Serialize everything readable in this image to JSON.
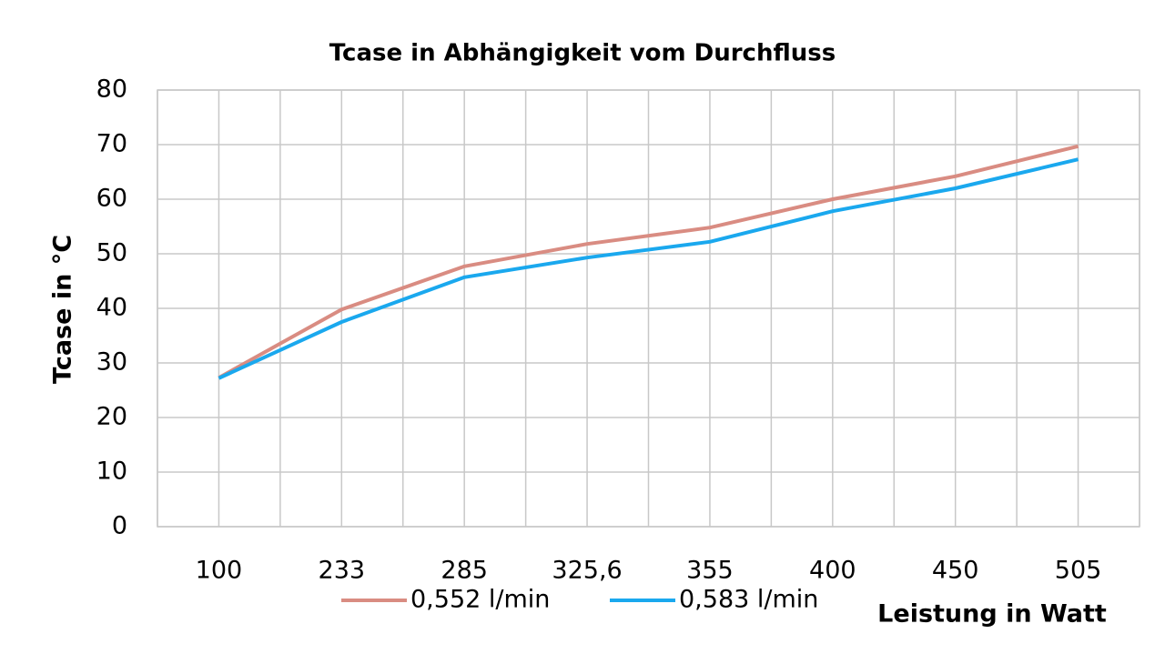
{
  "chart_data": {
    "type": "line",
    "title": "Tcase in Abhängigkeit vom Durchfluss",
    "x_label": "Leistung in Watt",
    "y_label": "Tcase in °C",
    "categories": [
      "100",
      "233",
      "285",
      "325,6",
      "355",
      "400",
      "450",
      "505"
    ],
    "series": [
      {
        "name": "0,552 l/min",
        "color": "#d98c82",
        "values": [
          27.3,
          39.8,
          47.7,
          51.8,
          54.8,
          60,
          64.2,
          69.7
        ]
      },
      {
        "name": "0,583 l/min",
        "color": "#1aa8ee",
        "values": [
          27.2,
          37.5,
          45.7,
          49.3,
          52.2,
          57.8,
          62,
          67.3
        ]
      }
    ],
    "ylim": [
      0,
      80
    ],
    "yticks": [
      0,
      10,
      20,
      30,
      40,
      50,
      60,
      70,
      80
    ],
    "grid": true,
    "legend": "bottom"
  }
}
